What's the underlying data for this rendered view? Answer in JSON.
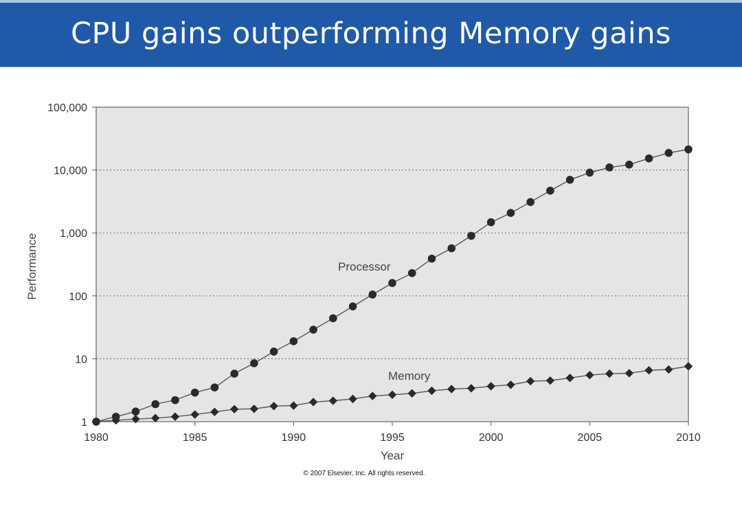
{
  "slide": {
    "title": "CPU gains outperforming Memory gains"
  },
  "chart_data": {
    "type": "line",
    "title": "",
    "xlabel": "Year",
    "ylabel": "Performance",
    "xscale": "linear",
    "yscale": "log",
    "xlim": [
      1980,
      2010
    ],
    "ylim": [
      1,
      100000
    ],
    "x_ticks": [
      1980,
      1985,
      1990,
      1995,
      2000,
      2005,
      2010
    ],
    "y_ticks": [
      {
        "value": 1,
        "label": "1"
      },
      {
        "value": 10,
        "label": "10"
      },
      {
        "value": 100,
        "label": "100"
      },
      {
        "value": 1000,
        "label": "1,000"
      },
      {
        "value": 10000,
        "label": "10,000"
      },
      {
        "value": 100000,
        "label": "100,000"
      }
    ],
    "grid": "horizontal dotted",
    "background": "#e5e5e5",
    "series": [
      {
        "name": "Processor",
        "marker": "circle",
        "color": "#333333",
        "x": [
          1980,
          1981,
          1982,
          1983,
          1984,
          1985,
          1986,
          1987,
          1988,
          1989,
          1990,
          1991,
          1992,
          1993,
          1994,
          1995,
          1996,
          1997,
          1998,
          1999,
          2000,
          2001,
          2002,
          2003,
          2004,
          2005,
          2006,
          2007,
          2008,
          2009,
          2010
        ],
        "values": [
          1,
          1.2,
          1.45,
          1.9,
          2.2,
          2.9,
          3.5,
          5.8,
          8.5,
          13,
          19,
          29,
          44,
          68,
          105,
          160,
          230,
          390,
          570,
          900,
          1480,
          2080,
          3100,
          4700,
          7000,
          9100,
          11000,
          12200,
          15300,
          18700,
          21300
        ]
      },
      {
        "name": "Memory",
        "marker": "diamond",
        "color": "#333333",
        "x": [
          1980,
          1981,
          1982,
          1983,
          1984,
          1985,
          1986,
          1987,
          1988,
          1989,
          1990,
          1991,
          1992,
          1993,
          1994,
          1995,
          1996,
          1997,
          1998,
          1999,
          2000,
          2001,
          2002,
          2003,
          2004,
          2005,
          2006,
          2007,
          2008,
          2009,
          2010
        ],
        "values": [
          1,
          1.05,
          1.1,
          1.14,
          1.2,
          1.3,
          1.43,
          1.58,
          1.6,
          1.77,
          1.8,
          2.05,
          2.15,
          2.3,
          2.56,
          2.68,
          2.82,
          3.1,
          3.3,
          3.4,
          3.66,
          3.86,
          4.4,
          4.5,
          4.96,
          5.5,
          5.8,
          5.9,
          6.55,
          6.75,
          7.6
        ]
      }
    ],
    "annotations": [
      {
        "text": "© 2007 Elsevier, Inc. All rights reserved."
      }
    ]
  }
}
